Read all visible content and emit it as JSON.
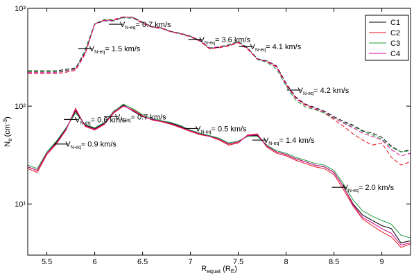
{
  "chart_data": {
    "type": "line",
    "log_y": true,
    "xlabel": [
      "R",
      "equat",
      " (R",
      "E",
      ")"
    ],
    "ylabel": [
      "N",
      "e",
      "(cm",
      "-3",
      ")"
    ],
    "xlim": [
      5.3,
      9.3
    ],
    "ylim": [
      3,
      1000
    ],
    "xticks": [
      5.5,
      6,
      6.5,
      7,
      7.5,
      8,
      8.5,
      9
    ],
    "yticks": [
      {
        "value": 1000,
        "label": "10³"
      },
      {
        "value": 100,
        "label": "10²"
      },
      {
        "value": 10,
        "label": "10¹"
      }
    ],
    "legend": "upper right",
    "x": [
      5.3,
      5.4,
      5.5,
      5.6,
      5.7,
      5.8,
      5.9,
      6.0,
      6.1,
      6.2,
      6.3,
      6.4,
      6.5,
      6.6,
      6.7,
      6.8,
      6.9,
      7.0,
      7.1,
      7.2,
      7.3,
      7.4,
      7.5,
      7.6,
      7.7,
      7.8,
      7.9,
      8.0,
      8.1,
      8.2,
      8.3,
      8.4,
      8.5,
      8.6,
      8.7,
      8.8,
      8.9,
      9.0,
      9.1,
      9.2,
      9.3
    ],
    "series": [
      {
        "name": "C1",
        "color": "#000000",
        "values": [
          24,
          22,
          33,
          43,
          59,
          89,
          64,
          59,
          67,
          89,
          103,
          89,
          78,
          73,
          70,
          67,
          62,
          56,
          52,
          50,
          46,
          41,
          43,
          50,
          50,
          39,
          34,
          32,
          29,
          27,
          25,
          24,
          21,
          15,
          10,
          7.7,
          6.8,
          6.0,
          5.6,
          4.0,
          4.2
        ],
        "values_dashed": [
          230,
          230,
          230,
          230,
          238,
          246,
          357,
          687,
          745,
          745,
          810,
          810,
          720,
          650,
          630,
          580,
          555,
          520,
          470,
          390,
          400,
          420,
          456,
          390,
          305,
          290,
          258,
          171,
          124,
          105,
          97,
          89,
          78,
          70,
          64,
          56,
          53,
          48,
          39,
          34,
          36
        ]
      },
      {
        "name": "C2",
        "color": "#e8141e",
        "values": [
          23,
          21,
          32,
          41,
          57,
          95,
          62,
          57,
          65,
          85,
          100,
          92,
          80,
          72,
          69,
          65,
          60,
          55,
          51,
          49,
          45,
          40,
          42,
          51,
          52,
          38,
          33,
          31,
          28,
          26,
          24,
          23,
          20,
          14,
          9.5,
          7.0,
          6.0,
          5.2,
          4.6,
          3.6,
          3.9
        ],
        "values_dashed": [
          215,
          215,
          215,
          215,
          222,
          232,
          340,
          690,
          760,
          770,
          820,
          800,
          700,
          640,
          620,
          570,
          545,
          510,
          460,
          385,
          395,
          410,
          445,
          380,
          300,
          285,
          250,
          165,
          120,
          102,
          93,
          85,
          73,
          62,
          52,
          45,
          40,
          42,
          30,
          25,
          27
        ]
      },
      {
        "name": "C3",
        "color": "#1b9e3c",
        "values": [
          25,
          23,
          34,
          44,
          60,
          85,
          65,
          60,
          68,
          88,
          105,
          94,
          82,
          75,
          71,
          68,
          63,
          57,
          53,
          50,
          47,
          42,
          44,
          49,
          49,
          40,
          35,
          33,
          30,
          28,
          26,
          25,
          22,
          16,
          11,
          8.5,
          7.5,
          6.8,
          6.2,
          4.8,
          4.5
        ],
        "values_dashed": [
          225,
          225,
          225,
          225,
          232,
          240,
          380,
          700,
          770,
          760,
          800,
          790,
          710,
          645,
          625,
          575,
          548,
          515,
          465,
          395,
          405,
          425,
          460,
          395,
          300,
          280,
          240,
          160,
          115,
          98,
          92,
          85,
          75,
          68,
          62,
          55,
          51,
          46,
          38,
          34,
          35
        ]
      },
      {
        "name": "C4",
        "color": "#d4008c",
        "values": [
          24,
          22,
          33,
          42,
          58,
          92,
          63,
          58,
          66,
          87,
          101,
          90,
          79,
          73,
          70,
          66,
          61,
          56,
          52,
          49,
          46,
          41,
          43,
          50,
          51,
          39,
          34,
          32,
          29,
          27,
          25,
          24,
          21,
          15,
          9.8,
          7.3,
          6.4,
          5.6,
          5.0,
          3.8,
          4.0
        ],
        "values_dashed": [
          220,
          220,
          220,
          220,
          228,
          238,
          350,
          695,
          750,
          755,
          815,
          805,
          715,
          648,
          628,
          578,
          550,
          518,
          468,
          392,
          402,
          418,
          452,
          388,
          302,
          288,
          255,
          168,
          122,
          104,
          95,
          87,
          76,
          67,
          60,
          53,
          49,
          45,
          36,
          31,
          33
        ]
      }
    ],
    "annotations": [
      {
        "x": 5.9,
        "y": 388,
        "text": [
          "V",
          "N-eq",
          "= 1.5 km/s"
        ]
      },
      {
        "x": 6.22,
        "y": 687,
        "text": [
          "V",
          "N-eq",
          "= 0.7 km/s"
        ]
      },
      {
        "x": 7.05,
        "y": 480,
        "text": [
          "V",
          "N-eq",
          "= 3.6 km/s"
        ]
      },
      {
        "x": 7.58,
        "y": 407,
        "text": [
          "V",
          "N-eq",
          "= 4.1 km/s"
        ]
      },
      {
        "x": 8.08,
        "y": 146,
        "text": [
          "V",
          "N-eq",
          "= 4.2 km/s"
        ]
      },
      {
        "x": 5.75,
        "y": 73,
        "text": [
          "V",
          "N-eq",
          "= 0.6 km/s"
        ]
      },
      {
        "x": 5.65,
        "y": 41,
        "text": [
          "V",
          "N-eq",
          "= 0.9 km/s"
        ]
      },
      {
        "x": 6.17,
        "y": 78,
        "text": [
          "V",
          "N-eq",
          "= 0.7 km/s"
        ]
      },
      {
        "x": 7.01,
        "y": 59,
        "text": [
          "V",
          "N-eq",
          "= 0.5 km/s"
        ]
      },
      {
        "x": 7.72,
        "y": 45,
        "text": [
          "V",
          "N-eq",
          "= 1.4 km/s"
        ]
      },
      {
        "x": 8.55,
        "y": 14.8,
        "text": [
          "V",
          "N-eq",
          "= 2.0 km/s"
        ]
      }
    ]
  }
}
